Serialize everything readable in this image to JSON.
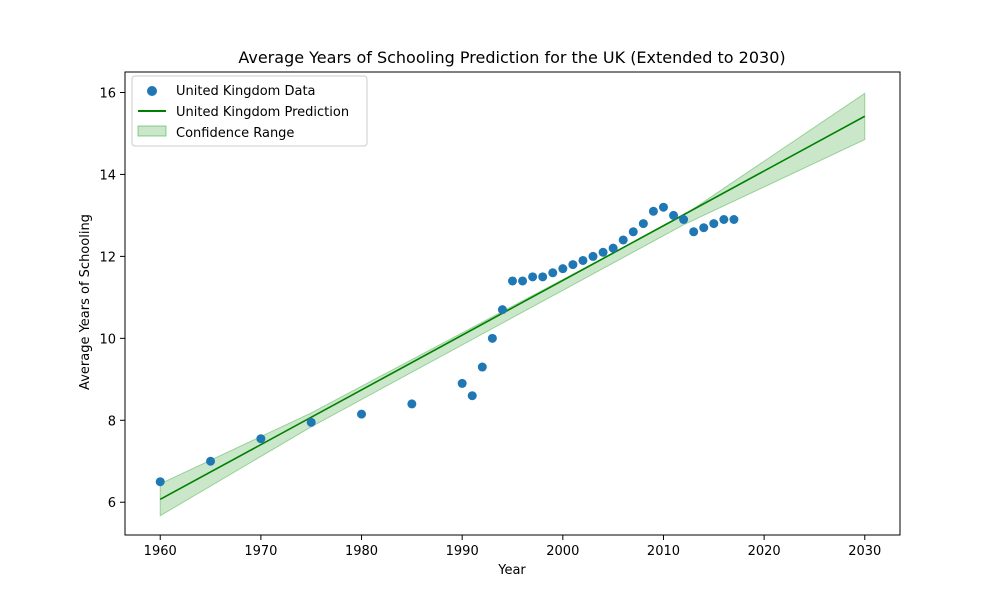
{
  "chart_data": {
    "type": "scatter",
    "title": "Average Years of Schooling Prediction for the UK (Extended to 2030)",
    "xlabel": "Year",
    "ylabel": "Average Years of Schooling",
    "xlim": [
      1956.5,
      2033.5
    ],
    "ylim": [
      5.2,
      16.5
    ],
    "xticks": [
      1960,
      1970,
      1980,
      1990,
      2000,
      2010,
      2020,
      2030
    ],
    "yticks": [
      6,
      8,
      10,
      12,
      14,
      16
    ],
    "grid": false,
    "legend_position": "top-left",
    "series": [
      {
        "name": "United Kingdom Data",
        "kind": "scatter",
        "color": "#1f77b4",
        "x": [
          1960,
          1965,
          1970,
          1975,
          1980,
          1985,
          1990,
          1991,
          1992,
          1993,
          1994,
          1995,
          1996,
          1997,
          1998,
          1999,
          2000,
          2001,
          2002,
          2003,
          2004,
          2005,
          2006,
          2007,
          2008,
          2009,
          2010,
          2011,
          2012,
          2013,
          2014,
          2015,
          2016,
          2017
        ],
        "y": [
          6.5,
          7.0,
          7.55,
          7.95,
          8.15,
          8.4,
          8.9,
          8.6,
          9.3,
          10.0,
          10.7,
          11.4,
          11.4,
          11.5,
          11.5,
          11.6,
          11.7,
          11.8,
          11.9,
          12.0,
          12.1,
          12.2,
          12.4,
          12.6,
          12.8,
          13.1,
          13.2,
          13.0,
          12.9,
          12.6,
          12.7,
          12.8,
          12.9,
          12.9
        ]
      },
      {
        "name": "United Kingdom Prediction",
        "kind": "line",
        "color": "#008000",
        "x": [
          1960,
          2030
        ],
        "y": [
          6.07,
          15.42
        ]
      },
      {
        "name": "Confidence Range",
        "kind": "band",
        "color": "#2ca02c",
        "x": [
          1960,
          1975,
          2012,
          2030
        ],
        "lower": [
          5.67,
          7.84,
          12.77,
          14.85
        ],
        "upper": [
          6.45,
          8.18,
          13.0,
          15.98
        ]
      }
    ]
  }
}
